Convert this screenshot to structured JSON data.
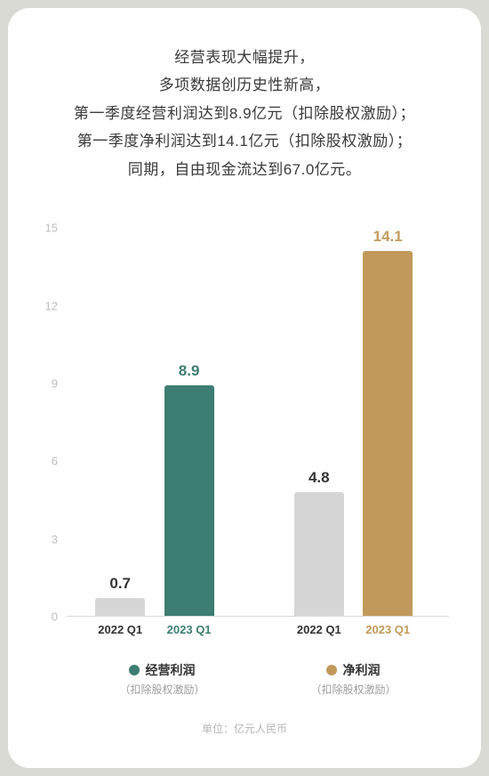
{
  "headline": {
    "l1": "经营表现大幅提升，",
    "l2": "多项数据创历史性新高，",
    "l3": "第一季度经营利润达到8.9亿元（扣除股权激励）；",
    "l4": "第一季度净利润达到14.1亿元（扣除股权激励）；",
    "l5": "同期，自由现金流达到67.0亿元。"
  },
  "chart": {
    "type": "bar",
    "ylim": [
      0,
      15
    ],
    "yticks": [
      0,
      3,
      6,
      9,
      12,
      15
    ],
    "axis_color": "#d9d9d9",
    "ylabel_color": "#bdbdbd",
    "ylabel_fontsize": 13,
    "value_label_fontsize": 17,
    "bar_width_pct": 13,
    "bar_radius": 3,
    "groups": [
      {
        "key": "operating_profit",
        "legend_title": "经营利润",
        "legend_sub": "（扣除股权激励）",
        "legend_dot_color": "#3d7d72",
        "bars": [
          {
            "label": "2022 Q1",
            "value": 0.7,
            "color": "#d6d6d6",
            "label_color": "#333333",
            "xcat_color": "#333333",
            "center_pct": 14
          },
          {
            "label": "2023 Q1",
            "value": 8.9,
            "color": "#3d7d72",
            "label_color": "#3d7d72",
            "xcat_color": "#3d7d72",
            "center_pct": 32
          }
        ]
      },
      {
        "key": "net_profit",
        "legend_title": "净利润",
        "legend_sub": "（扣除股权激励）",
        "legend_dot_color": "#c19a5b",
        "bars": [
          {
            "label": "2022 Q1",
            "value": 4.8,
            "color": "#d6d6d6",
            "label_color": "#333333",
            "xcat_color": "#333333",
            "center_pct": 66
          },
          {
            "label": "2023 Q1",
            "value": 14.1,
            "color": "#c19a5b",
            "label_color": "#c19a5b",
            "xcat_color": "#c19a5b",
            "center_pct": 84
          }
        ]
      }
    ]
  },
  "unit_label": "单位：亿元人民币",
  "colors": {
    "page_bg": "#d8dad3",
    "card_bg": "#ffffff",
    "headline_text": "#3a3a3a"
  }
}
